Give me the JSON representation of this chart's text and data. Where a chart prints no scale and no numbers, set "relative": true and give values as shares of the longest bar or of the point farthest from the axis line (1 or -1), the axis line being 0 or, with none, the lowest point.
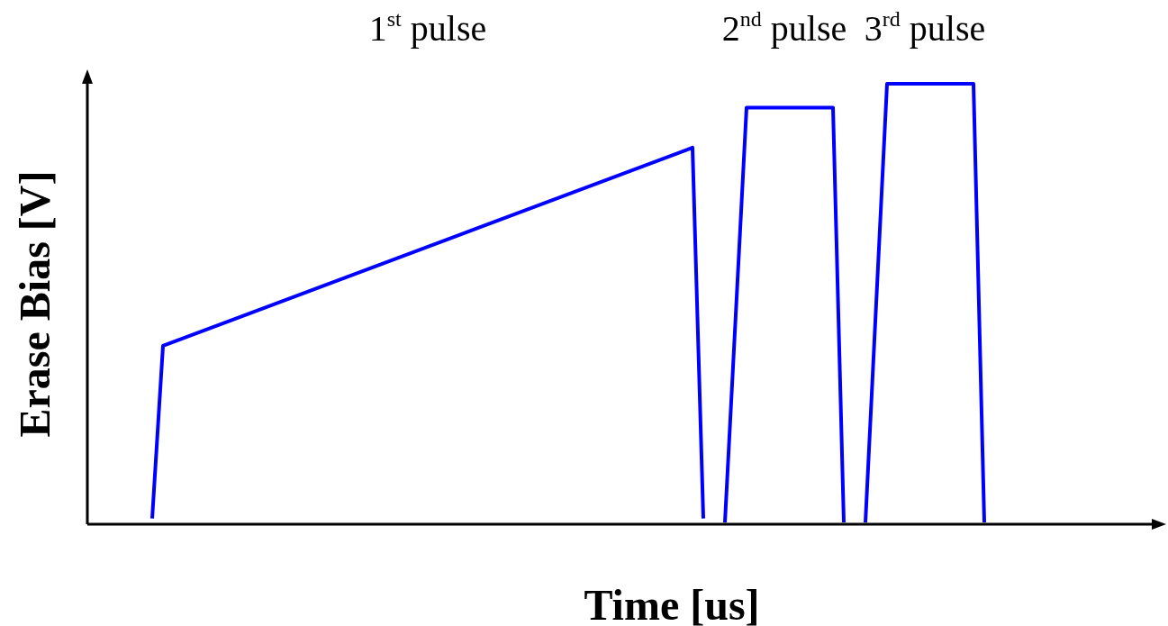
{
  "chart_data": {
    "type": "line",
    "relative": true,
    "xlabel": "Time [us]",
    "ylabel": "Erase Bias [V]",
    "marker": "none",
    "line_style": "solid",
    "categories": [
      null,
      null,
      null,
      null,
      null,
      null,
      null,
      null,
      null,
      null,
      null,
      null,
      null,
      null,
      null,
      null,
      null,
      null,
      null,
      null,
      null,
      null,
      null,
      null,
      null,
      null,
      null,
      null,
      null,
      null,
      null,
      null,
      null,
      null,
      null,
      null,
      null,
      null,
      null,
      null,
      null,
      null,
      null,
      null,
      null,
      null,
      null,
      null,
      null,
      null,
      null,
      null,
      null,
      null,
      null,
      null,
      null,
      null,
      null,
      null,
      null,
      null,
      null,
      null,
      null,
      null,
      null,
      null,
      null,
      null,
      null,
      null,
      null,
      null,
      null,
      null,
      null,
      null,
      null,
      null,
      null,
      null,
      null,
      null,
      null,
      null,
      null,
      null,
      null,
      null,
      null,
      null,
      null,
      null,
      null,
      null,
      null,
      null,
      null,
      null
    ],
    "series": [
      {
        "color": "#0000ff",
        "values": [
          null,
          null,
          null,
          null,
          null,
          null,
          0.013,
          0.405,
          null,
          null,
          null,
          null,
          null,
          null,
          null,
          null,
          null,
          null,
          null,
          null,
          null,
          null,
          null,
          null,
          null,
          null,
          null,
          null,
          null,
          null,
          null,
          null,
          null,
          null,
          null,
          null,
          null,
          null,
          null,
          null,
          null,
          null,
          null,
          null,
          null,
          null,
          null,
          null,
          null,
          null,
          null,
          null,
          null,
          null,
          null,
          null,
          0.855,
          0.013,
          null,
          null,
          null,
          null,
          null,
          null,
          null,
          null,
          null,
          null,
          null,
          null,
          null,
          null,
          null,
          null,
          null,
          null,
          null,
          null,
          null,
          null,
          null,
          null,
          null,
          null,
          null,
          null,
          null,
          null,
          null,
          null,
          null,
          null,
          null,
          null,
          null,
          null,
          null,
          null,
          null,
          null
        ]
      },
      {
        "color": "#0000ff",
        "values": [
          null,
          null,
          null,
          null,
          null,
          null,
          null,
          null,
          null,
          null,
          null,
          null,
          null,
          null,
          null,
          null,
          null,
          null,
          null,
          null,
          null,
          null,
          null,
          null,
          null,
          null,
          null,
          null,
          null,
          null,
          null,
          null,
          null,
          null,
          null,
          null,
          null,
          null,
          null,
          null,
          null,
          null,
          null,
          null,
          null,
          null,
          null,
          null,
          null,
          null,
          null,
          null,
          null,
          null,
          null,
          null,
          null,
          null,
          null,
          0.004,
          null,
          0.946,
          null,
          null,
          null,
          null,
          null,
          null,
          null,
          0.946,
          0.004,
          null,
          null,
          null,
          null,
          null,
          null,
          null,
          null,
          null,
          null,
          null,
          null,
          null,
          null,
          null,
          null,
          null,
          null,
          null,
          null,
          null,
          null,
          null,
          null,
          null,
          null,
          null,
          null,
          null
        ]
      },
      {
        "color": "#0000ff",
        "values": [
          null,
          null,
          null,
          null,
          null,
          null,
          null,
          null,
          null,
          null,
          null,
          null,
          null,
          null,
          null,
          null,
          null,
          null,
          null,
          null,
          null,
          null,
          null,
          null,
          null,
          null,
          null,
          null,
          null,
          null,
          null,
          null,
          null,
          null,
          null,
          null,
          null,
          null,
          null,
          null,
          null,
          null,
          null,
          null,
          null,
          null,
          null,
          null,
          null,
          null,
          null,
          null,
          null,
          null,
          null,
          null,
          null,
          null,
          null,
          null,
          null,
          null,
          null,
          null,
          null,
          null,
          null,
          null,
          null,
          null,
          null,
          null,
          0.004,
          null,
          1,
          null,
          null,
          null,
          null,
          null,
          null,
          null,
          1,
          0.004,
          null,
          null,
          null,
          null,
          null,
          null,
          null,
          null,
          null,
          null,
          null,
          null,
          null,
          null,
          null,
          null
        ]
      }
    ],
    "annotations": [
      "1$^{st}$ pulse",
      "2$^{nd}$ pulse",
      "3$^{rd}$ pulse"
    ]
  }
}
